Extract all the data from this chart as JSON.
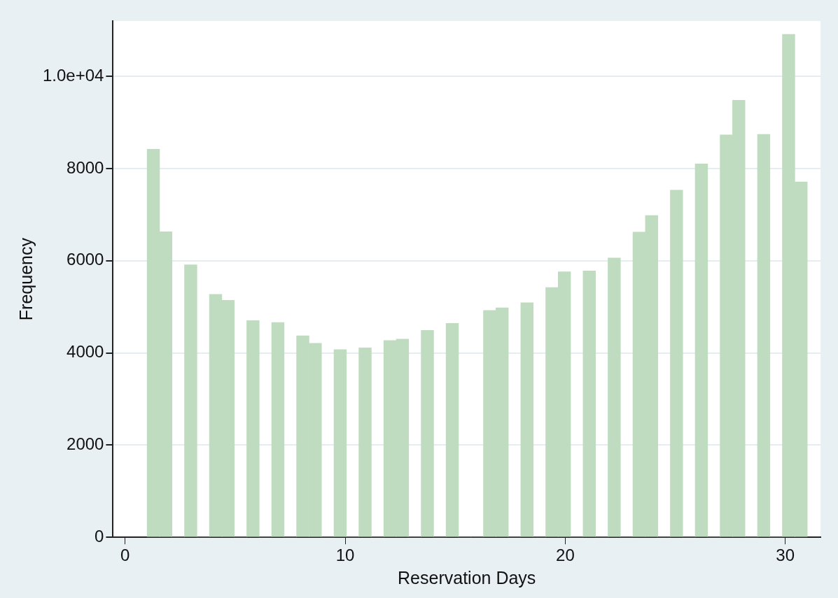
{
  "chart_data": {
    "type": "histogram",
    "xlabel": "Reservation Days",
    "ylabel": "Frequency",
    "bins": [
      1,
      1.566,
      2.132,
      2.698,
      3.264,
      3.83,
      4.396,
      4.962,
      5.528,
      6.094,
      6.66,
      7.226,
      7.792,
      8.358,
      8.925,
      9.491,
      10.057,
      10.623,
      11.189,
      11.755,
      12.321,
      12.887,
      13.453,
      14.019,
      14.585,
      15.151,
      15.717,
      16.283,
      16.849,
      17.415,
      17.981,
      18.547,
      19.113,
      19.679,
      20.245,
      20.811,
      21.377,
      21.943,
      22.509,
      23.075,
      23.642,
      24.208,
      24.774,
      25.34,
      25.906,
      26.472,
      27.038,
      27.604,
      28.17,
      28.736,
      29.302,
      29.868,
      30.434,
      31
    ],
    "values": [
      8420,
      6630,
      0,
      5910,
      0,
      5270,
      5140,
      0,
      4700,
      0,
      4660,
      0,
      4370,
      4210,
      0,
      4070,
      0,
      4110,
      0,
      4270,
      4300,
      0,
      4490,
      0,
      4640,
      0,
      0,
      4920,
      4980,
      0,
      5090,
      0,
      5420,
      5760,
      0,
      5780,
      0,
      6060,
      0,
      6620,
      6980,
      0,
      7530,
      0,
      8100,
      0,
      8730,
      9480,
      0,
      8740,
      0,
      10910,
      7710
    ],
    "color": "#c0dcc0",
    "xlim": [
      -0.55,
      31.6
    ],
    "xticks": [
      0,
      10,
      20,
      30
    ],
    "ylim": [
      0,
      11200
    ],
    "yticks": [
      0,
      2000,
      4000,
      6000,
      8000,
      {
        "value": 10000,
        "label": "1.0e+04"
      }
    ],
    "grid": "y",
    "legend": false
  }
}
